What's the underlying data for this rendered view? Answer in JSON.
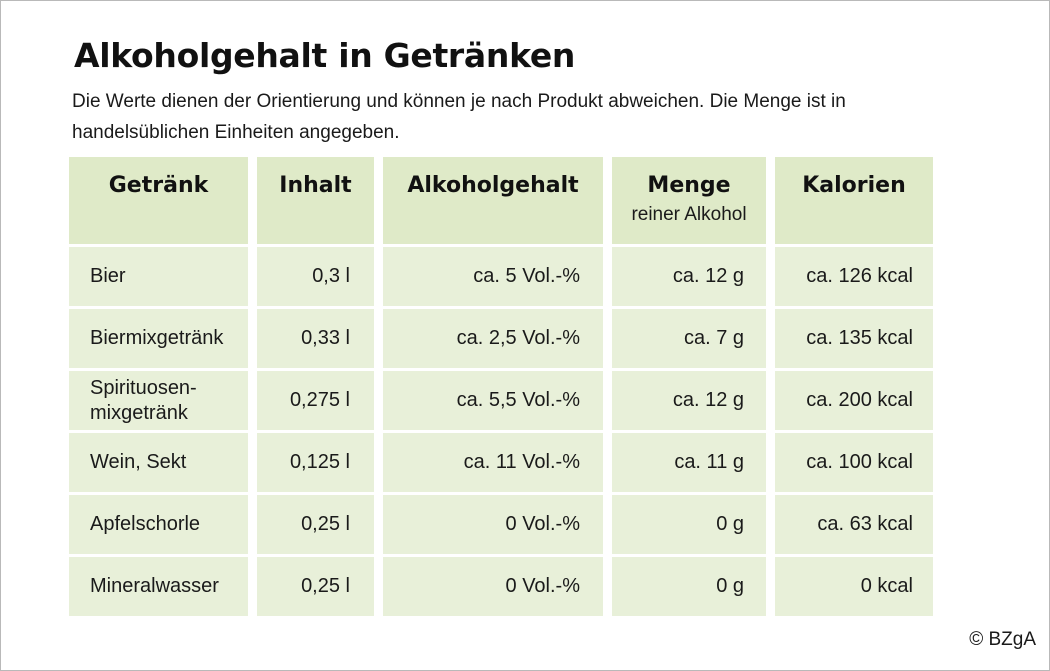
{
  "title": "Alkoholgehalt in Getränken",
  "subtitle": "Die Werte dienen der Orientierung und können je nach Produkt abweichen. Die Menge ist in handelsüblichen Einheiten angegeben.",
  "table": {
    "headers": [
      {
        "label": "Getränk",
        "sub": ""
      },
      {
        "label": "Inhalt",
        "sub": ""
      },
      {
        "label": "Alkoholgehalt",
        "sub": ""
      },
      {
        "label": "Menge",
        "sub": "reiner Alkohol"
      },
      {
        "label": "Kalorien",
        "sub": ""
      }
    ],
    "rows": [
      {
        "getraenk": "Bier",
        "inhalt": "0,3 l",
        "alkoholgehalt": "ca. 5 Vol.-%",
        "menge": "ca. 12 g",
        "kalorien": "ca. 126 kcal"
      },
      {
        "getraenk": "Biermixgetränk",
        "inhalt": "0,33 l",
        "alkoholgehalt": "ca. 2,5 Vol.-%",
        "menge": "ca. 7 g",
        "kalorien": "ca. 135 kcal"
      },
      {
        "getraenk": "Spirituosen-\nmixgetränk",
        "inhalt": "0,275 l",
        "alkoholgehalt": "ca. 5,5 Vol.-%",
        "menge": "ca. 12 g",
        "kalorien": "ca. 200 kcal"
      },
      {
        "getraenk": "Wein, Sekt",
        "inhalt": "0,125 l",
        "alkoholgehalt": "ca. 11 Vol.-%",
        "menge": "ca. 11 g",
        "kalorien": "ca. 100 kcal"
      },
      {
        "getraenk": "Apfelschorle",
        "inhalt": "0,25 l",
        "alkoholgehalt": "0 Vol.-%",
        "menge": "0 g",
        "kalorien": "ca. 63 kcal"
      },
      {
        "getraenk": "Mineralwasser",
        "inhalt": "0,25 l",
        "alkoholgehalt": "0 Vol.-%",
        "menge": "0 g",
        "kalorien": "0 kcal"
      }
    ]
  },
  "copyright": "© BZgA",
  "colors": {
    "header_bg": "#dfeac8",
    "cell_bg": "#e8f0d9",
    "text": "#1a1a1a"
  }
}
